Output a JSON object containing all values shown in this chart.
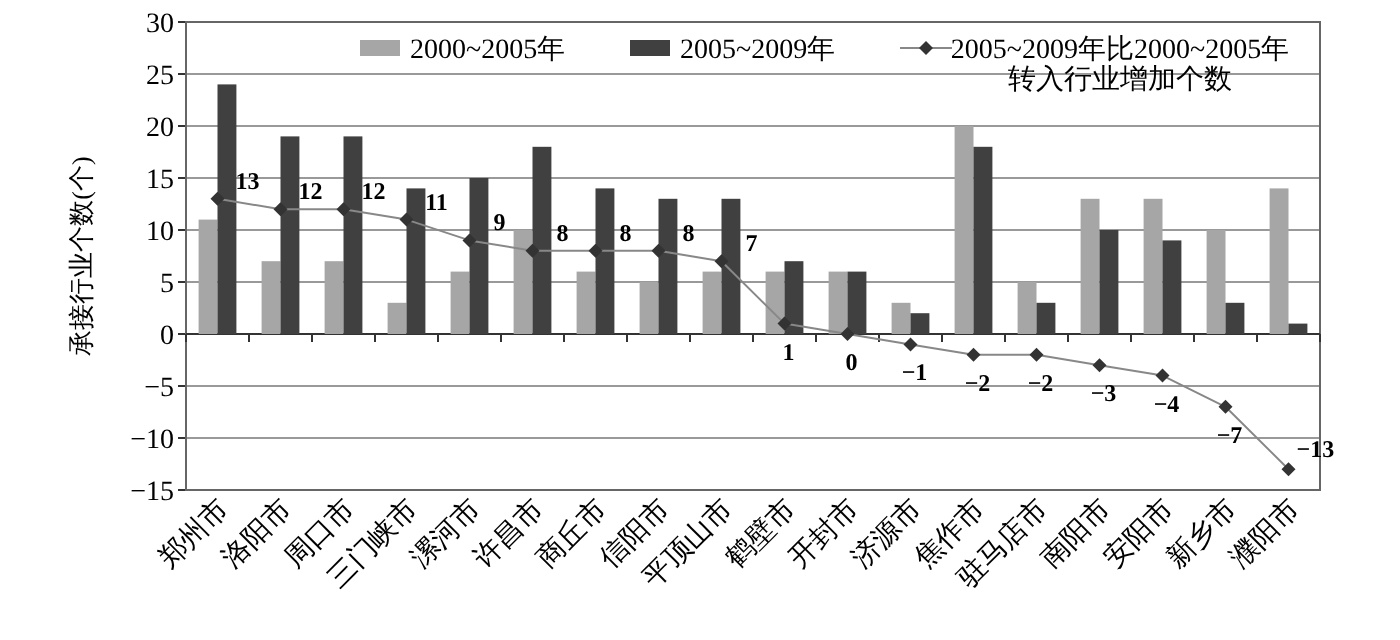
{
  "chart_data": {
    "type": "bar",
    "ylabel": "承接行业个数(个)",
    "categories": [
      "郑州市",
      "洛阳市",
      "周口市",
      "三门峡市",
      "漯河市",
      "许昌市",
      "商丘市",
      "信阳市",
      "平顶山市",
      "鹤壁市",
      "开封市",
      "济源市",
      "焦作市",
      "驻马店市",
      "南阳市",
      "安阳市",
      "新乡市",
      "濮阳市"
    ],
    "series": [
      {
        "name": "2000~2005年",
        "color": "#a6a6a6",
        "values": [
          11,
          7,
          7,
          3,
          6,
          10,
          6,
          5,
          6,
          6,
          6,
          3,
          20,
          5,
          13,
          13,
          10,
          14
        ]
      },
      {
        "name": "2005~2009年",
        "color": "#404040",
        "values": [
          24,
          19,
          19,
          14,
          15,
          18,
          14,
          13,
          13,
          7,
          6,
          2,
          18,
          3,
          10,
          9,
          3,
          1
        ]
      },
      {
        "name": "2005~2009年比2000~2005年转入行业增加个数",
        "type": "line",
        "marker": "diamond",
        "color": "#333333",
        "values": [
          13,
          12,
          12,
          11,
          9,
          8,
          8,
          8,
          7,
          1,
          0,
          -1,
          -2,
          -2,
          -3,
          -4,
          -7,
          -13
        ],
        "value_labels": [
          "13",
          "12",
          "12",
          "11",
          "9",
          "8",
          "8",
          "8",
          "7",
          "1",
          "0",
          "−1",
          "−2",
          "−2",
          "−3",
          "−4",
          "−7",
          "−13"
        ]
      }
    ],
    "ylim": [
      -15,
      30
    ],
    "yticks": [
      -15,
      -10,
      -5,
      0,
      5,
      10,
      15,
      20,
      25,
      30
    ],
    "grid": "y",
    "legend": "top"
  }
}
